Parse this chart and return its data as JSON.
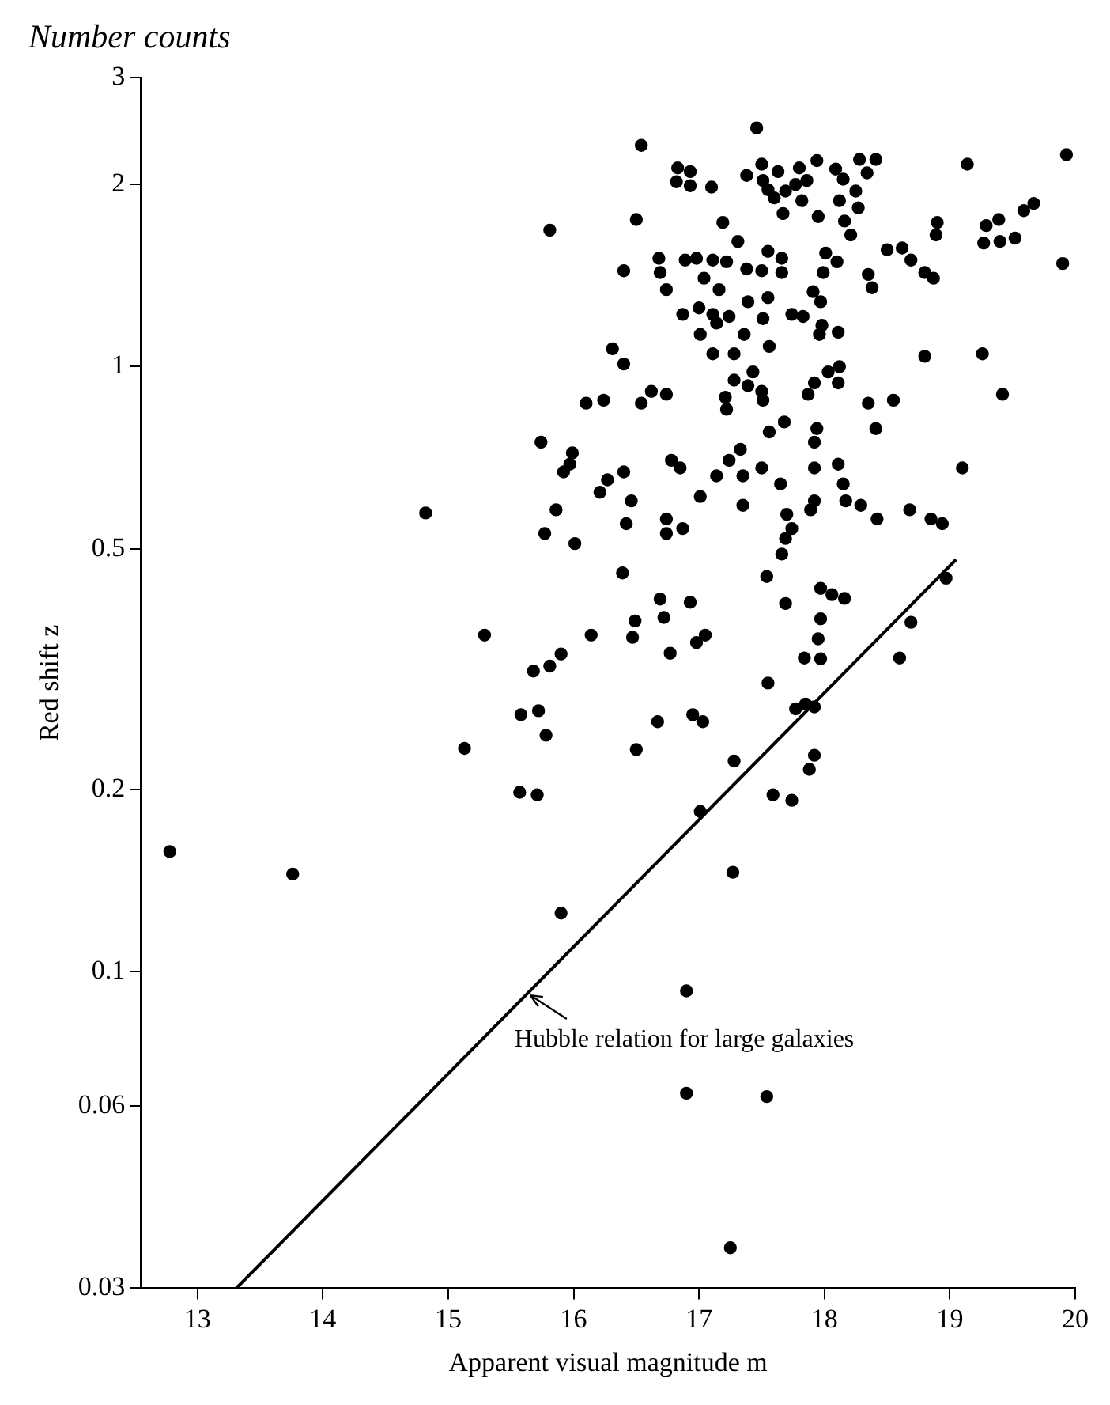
{
  "chart_data": {
    "type": "scatter",
    "title": "Number counts",
    "xlabel": "Apparent visual magnitude m",
    "ylabel": "Red shift z",
    "xlim": [
      12.55,
      20
    ],
    "xticks": [
      13,
      14,
      15,
      16,
      17,
      18,
      19,
      20
    ],
    "ylim": [
      0.03,
      3
    ],
    "yticks": [
      0.03,
      0.06,
      0.1,
      0.2,
      0.5,
      1,
      2,
      3
    ],
    "log": "y",
    "legend": false,
    "annotations": [
      {
        "text": "Hubble relation for large galaxies",
        "x": 15.63,
        "y": 0.092
      }
    ],
    "series": [
      {
        "type": "scatter",
        "marker": "circle",
        "color": "#000000",
        "x": [
          17.46,
          16.54,
          19.93,
          19.14,
          16.83,
          16.93,
          16.82,
          16.93,
          17.1,
          17.5,
          17.38,
          17.63,
          17.8,
          17.94,
          18.09,
          18.28,
          18.41,
          18.34,
          18.15,
          17.51,
          17.55,
          17.6,
          17.69,
          17.77,
          17.86,
          17.82,
          17.67,
          17.95,
          18.12,
          18.25,
          18.27,
          18.16,
          18.21,
          15.81,
          16.5,
          17.19,
          17.31,
          18.9,
          18.89,
          19.29,
          19.39,
          19.59,
          19.67,
          19.27,
          19.4,
          19.52,
          19.9,
          18.5,
          18.62,
          18.69,
          18.8,
          18.87,
          18.35,
          18.38,
          16.4,
          16.68,
          16.69,
          16.74,
          16.89,
          16.98,
          17.11,
          17.22,
          17.04,
          17.16,
          17.38,
          17.5,
          17.55,
          17.66,
          17.66,
          18.01,
          18.1,
          17.99,
          17.91,
          17.97,
          16.87,
          17.0,
          17.11,
          17.14,
          17.24,
          17.39,
          17.55,
          17.51,
          17.74,
          17.83,
          17.98,
          17.96,
          18.11,
          17.01,
          17.36,
          17.11,
          17.28,
          17.56,
          16.31,
          16.4,
          18.8,
          19.26,
          19.42,
          17.28,
          17.43,
          17.39,
          17.5,
          17.51,
          17.21,
          17.22,
          18.03,
          18.12,
          18.11,
          17.92,
          17.87,
          16.1,
          16.24,
          16.54,
          16.62,
          16.74,
          18.35,
          18.55,
          18.41,
          17.68,
          17.56,
          17.94,
          17.92,
          15.74,
          15.99,
          15.97,
          15.92,
          16.27,
          16.21,
          16.4,
          16.46,
          15.86,
          15.77,
          16.01,
          16.42,
          16.74,
          16.74,
          16.87,
          16.78,
          16.85,
          17.01,
          17.14,
          17.24,
          17.33,
          17.35,
          17.5,
          17.65,
          17.35,
          17.92,
          18.11,
          18.15,
          18.17,
          17.92,
          17.89,
          17.7,
          17.74,
          17.69,
          17.66,
          18.29,
          18.42,
          18.68,
          18.85,
          18.94,
          19.1,
          17.54,
          18.97,
          16.39,
          17.97,
          18.06,
          18.16,
          17.69,
          16.69,
          16.93,
          16.49,
          16.72,
          17.05,
          16.98,
          16.47,
          16.14,
          15.29,
          16.77,
          17.97,
          17.95,
          17.84,
          17.97,
          18.69,
          18.6,
          15.9,
          15.81,
          15.68,
          15.58,
          15.72,
          15.78,
          15.13,
          15.57,
          15.71,
          16.5,
          16.67,
          16.95,
          17.03,
          17.55,
          17.77,
          17.85,
          17.92,
          17.92,
          17.88,
          17.28,
          17.59,
          17.74,
          17.01,
          14.82,
          12.78,
          13.76,
          17.27,
          15.9,
          16.9,
          16.9,
          17.54,
          17.25
        ],
        "values": [
          2.48,
          2.32,
          2.24,
          2.16,
          2.13,
          2.1,
          2.02,
          1.99,
          1.98,
          2.16,
          2.07,
          2.1,
          2.13,
          2.19,
          2.12,
          2.2,
          2.2,
          2.09,
          2.04,
          2.03,
          1.96,
          1.9,
          1.95,
          2.0,
          2.03,
          1.88,
          1.79,
          1.77,
          1.88,
          1.95,
          1.83,
          1.74,
          1.65,
          1.68,
          1.75,
          1.73,
          1.61,
          1.73,
          1.65,
          1.71,
          1.75,
          1.81,
          1.86,
          1.6,
          1.61,
          1.63,
          1.48,
          1.56,
          1.57,
          1.5,
          1.43,
          1.4,
          1.42,
          1.35,
          1.44,
          1.51,
          1.43,
          1.34,
          1.5,
          1.51,
          1.5,
          1.49,
          1.4,
          1.34,
          1.45,
          1.44,
          1.55,
          1.51,
          1.43,
          1.54,
          1.49,
          1.43,
          1.33,
          1.28,
          1.22,
          1.25,
          1.22,
          1.18,
          1.21,
          1.28,
          1.3,
          1.2,
          1.22,
          1.21,
          1.17,
          1.13,
          1.14,
          1.13,
          1.13,
          1.05,
          1.05,
          1.08,
          1.07,
          1.01,
          1.04,
          1.05,
          0.9,
          0.95,
          0.98,
          0.93,
          0.91,
          0.88,
          0.89,
          0.85,
          0.98,
          1.0,
          0.94,
          0.94,
          0.9,
          0.87,
          0.88,
          0.87,
          0.91,
          0.9,
          0.87,
          0.88,
          0.79,
          0.81,
          0.78,
          0.79,
          0.75,
          0.75,
          0.72,
          0.69,
          0.67,
          0.65,
          0.62,
          0.67,
          0.6,
          0.58,
          0.53,
          0.51,
          0.55,
          0.56,
          0.53,
          0.54,
          0.7,
          0.68,
          0.61,
          0.66,
          0.7,
          0.73,
          0.66,
          0.68,
          0.64,
          0.59,
          0.68,
          0.69,
          0.64,
          0.6,
          0.6,
          0.58,
          0.57,
          0.54,
          0.52,
          0.49,
          0.59,
          0.56,
          0.58,
          0.56,
          0.55,
          0.68,
          0.45,
          0.447,
          0.456,
          0.43,
          0.42,
          0.414,
          0.406,
          0.413,
          0.408,
          0.38,
          0.385,
          0.36,
          0.35,
          0.357,
          0.36,
          0.36,
          0.336,
          0.383,
          0.355,
          0.33,
          0.329,
          0.378,
          0.33,
          0.335,
          0.32,
          0.314,
          0.266,
          0.27,
          0.246,
          0.234,
          0.198,
          0.196,
          0.233,
          0.259,
          0.266,
          0.259,
          0.3,
          0.272,
          0.277,
          0.274,
          0.228,
          0.216,
          0.223,
          0.196,
          0.192,
          0.184,
          0.573,
          0.158,
          0.145,
          0.146,
          0.125,
          0.093,
          0.063,
          0.0622,
          0.035
        ]
      },
      {
        "type": "line",
        "color": "#000000",
        "x": [
          13.31,
          19.05
        ],
        "values": [
          0.03,
          0.48
        ]
      }
    ]
  }
}
